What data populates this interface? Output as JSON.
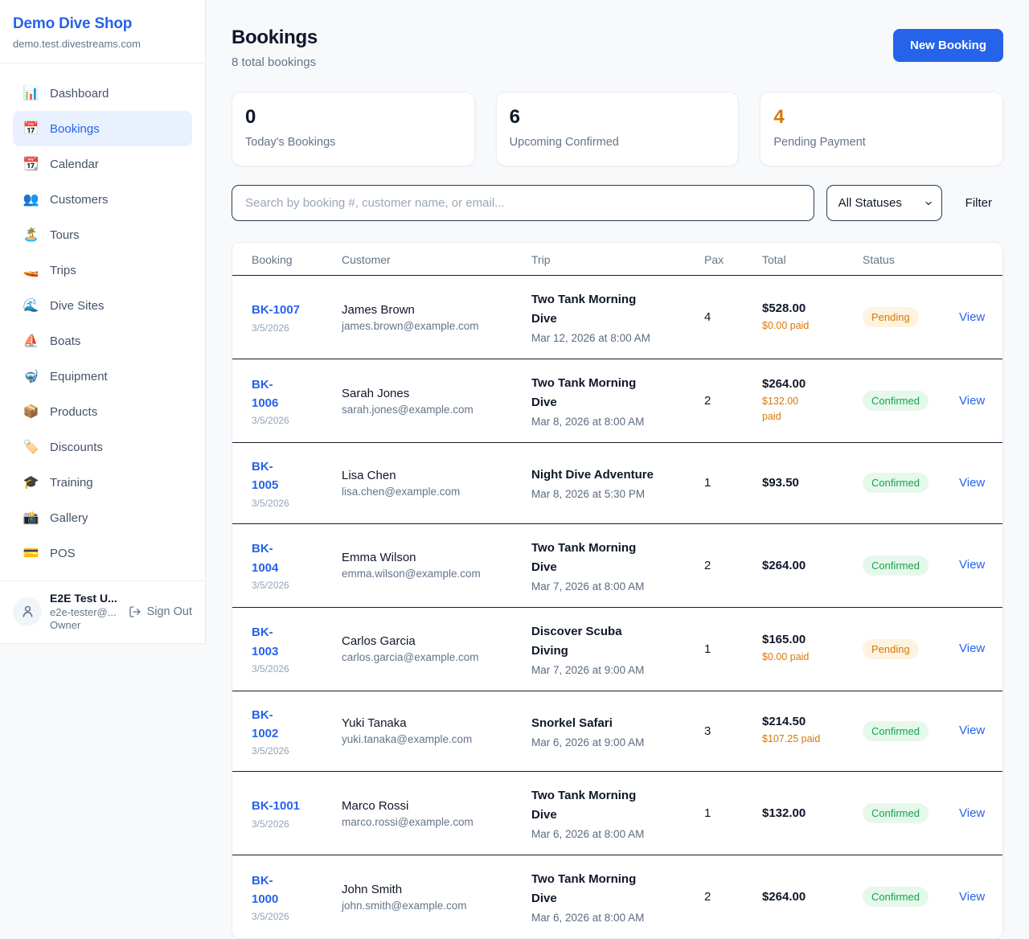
{
  "brand": {
    "name": "Demo Dive Shop",
    "domain": "demo.test.divestreams.com"
  },
  "sidebar": {
    "items": [
      {
        "label": "Dashboard",
        "emoji": "📊",
        "icon_name": "bar-chart-icon",
        "active": false
      },
      {
        "label": "Bookings",
        "emoji": "📅",
        "icon_name": "calendar-icon",
        "active": true
      },
      {
        "label": "Calendar",
        "emoji": "📆",
        "icon_name": "tear-off-calendar-icon",
        "active": false
      },
      {
        "label": "Customers",
        "emoji": "👥",
        "icon_name": "people-icon",
        "active": false
      },
      {
        "label": "Tours",
        "emoji": "🏝️",
        "icon_name": "island-icon",
        "active": false
      },
      {
        "label": "Trips",
        "emoji": "🚤",
        "icon_name": "speedboat-icon",
        "active": false
      },
      {
        "label": "Dive Sites",
        "emoji": "🌊",
        "icon_name": "wave-icon",
        "active": false
      },
      {
        "label": "Boats",
        "emoji": "⛵",
        "icon_name": "sailboat-icon",
        "active": false
      },
      {
        "label": "Equipment",
        "emoji": "🤿",
        "icon_name": "diving-mask-icon",
        "active": false
      },
      {
        "label": "Products",
        "emoji": "📦",
        "icon_name": "package-icon",
        "active": false
      },
      {
        "label": "Discounts",
        "emoji": "🏷️",
        "icon_name": "label-tag-icon",
        "active": false
      },
      {
        "label": "Training",
        "emoji": "🎓",
        "icon_name": "graduation-cap-icon",
        "active": false
      },
      {
        "label": "Gallery",
        "emoji": "📸",
        "icon_name": "camera-icon",
        "active": false
      },
      {
        "label": "POS",
        "emoji": "💳",
        "icon_name": "credit-card-icon",
        "active": false
      }
    ]
  },
  "user": {
    "name": "E2E Test U...",
    "email": "e2e-tester@...",
    "role": "Owner",
    "sign_out_label": "Sign Out"
  },
  "header": {
    "title": "Bookings",
    "subtitle": "8 total bookings",
    "new_booking_label": "New Booking"
  },
  "stats": [
    {
      "value": "0",
      "label": "Today's Bookings",
      "accent": "dark"
    },
    {
      "value": "6",
      "label": "Upcoming Confirmed",
      "accent": "dark"
    },
    {
      "value": "4",
      "label": "Pending Payment",
      "accent": "orange"
    }
  ],
  "filters": {
    "search_placeholder": "Search by booking #, customer name, or email...",
    "status_options": [
      "All Statuses"
    ],
    "filter_label": "Filter"
  },
  "table": {
    "columns": [
      "Booking",
      "Customer",
      "Trip",
      "Pax",
      "Total",
      "Status"
    ],
    "rows": [
      {
        "number": "BK-1007",
        "date": "3/5/2026",
        "customer": "James Brown",
        "email": "james.brown@example.com",
        "trip": "Two Tank Morning\nDive",
        "trip_date": "Mar 12, 2026 at 8:00 AM",
        "pax": "4",
        "total": "$528.00",
        "paid": "$0.00 paid",
        "status": "Pending",
        "view": "View"
      },
      {
        "number": "BK-\n1006",
        "date": "3/5/2026",
        "customer": "Sarah Jones",
        "email": "sarah.jones@example.com",
        "trip": "Two Tank Morning\nDive",
        "trip_date": "Mar 8, 2026 at 8:00 AM",
        "pax": "2",
        "total": "$264.00",
        "paid": "$132.00\npaid",
        "status": "Confirmed",
        "view": "View"
      },
      {
        "number": "BK-\n1005",
        "date": "3/5/2026",
        "customer": "Lisa Chen",
        "email": "lisa.chen@example.com",
        "trip": "Night Dive Adventure",
        "trip_date": "Mar 8, 2026 at 5:30 PM",
        "pax": "1",
        "total": "$93.50",
        "paid": null,
        "status": "Confirmed",
        "view": "View"
      },
      {
        "number": "BK-\n1004",
        "date": "3/5/2026",
        "customer": "Emma Wilson",
        "email": "emma.wilson@example.com",
        "trip": "Two Tank Morning\nDive",
        "trip_date": "Mar 7, 2026 at 8:00 AM",
        "pax": "2",
        "total": "$264.00",
        "paid": null,
        "status": "Confirmed",
        "view": "View"
      },
      {
        "number": "BK-\n1003",
        "date": "3/5/2026",
        "customer": "Carlos Garcia",
        "email": "carlos.garcia@example.com",
        "trip": "Discover Scuba\nDiving",
        "trip_date": "Mar 7, 2026 at 9:00 AM",
        "pax": "1",
        "total": "$165.00",
        "paid": "$0.00 paid",
        "status": "Pending",
        "view": "View"
      },
      {
        "number": "BK-\n1002",
        "date": "3/5/2026",
        "customer": "Yuki Tanaka",
        "email": "yuki.tanaka@example.com",
        "trip": "Snorkel Safari",
        "trip_date": "Mar 6, 2026 at 9:00 AM",
        "pax": "3",
        "total": "$214.50",
        "paid": "$107.25 paid",
        "status": "Confirmed",
        "view": "View"
      },
      {
        "number": "BK-1001",
        "date": "3/5/2026",
        "customer": "Marco Rossi",
        "email": "marco.rossi@example.com",
        "trip": "Two Tank Morning\nDive",
        "trip_date": "Mar 6, 2026 at 8:00 AM",
        "pax": "1",
        "total": "$132.00",
        "paid": null,
        "status": "Confirmed",
        "view": "View"
      },
      {
        "number": "BK-\n1000",
        "date": "3/5/2026",
        "customer": "John Smith",
        "email": "john.smith@example.com",
        "trip": "Two Tank Morning\nDive",
        "trip_date": "Mar 6, 2026 at 8:00 AM",
        "pax": "2",
        "total": "$264.00",
        "paid": null,
        "status": "Confirmed",
        "view": "View"
      }
    ]
  },
  "colors": {
    "accent_blue": "#2563eb",
    "orange": "#d97706",
    "green": "#16a34a",
    "pending_badge_bg": "#fdf3e0",
    "confirmed_badge_bg": "#e6f8ec",
    "page_bg": "#f7f9fb",
    "border_light": "#e9edf3",
    "row_divider_dark": "#141c2b"
  }
}
